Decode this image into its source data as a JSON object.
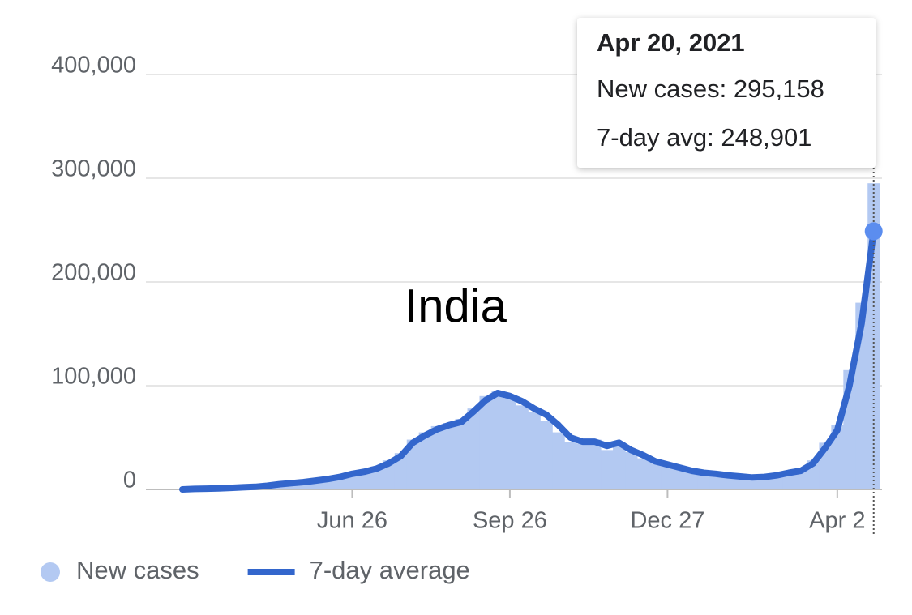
{
  "chart_data": {
    "type": "combo",
    "annotation": "India",
    "categories": [
      null,
      null,
      null,
      null,
      null,
      null,
      null,
      null,
      null,
      null,
      null,
      null,
      null,
      null,
      "Jun 26",
      null,
      null,
      null,
      null,
      null,
      null,
      null,
      null,
      null,
      null,
      null,
      null,
      "Sep 26",
      null,
      null,
      null,
      null,
      null,
      null,
      null,
      null,
      null,
      null,
      null,
      null,
      "Dec 27",
      null,
      null,
      null,
      null,
      null,
      null,
      null,
      null,
      null,
      null,
      null,
      null,
      null,
      "Apr 2",
      null,
      null,
      null
    ],
    "series": [
      {
        "name": "New cases",
        "type": "bar",
        "color": "#b3c9f2",
        "values": [
          100,
          700,
          900,
          1200,
          1800,
          2300,
          3000,
          4000,
          5500,
          6500,
          7800,
          9200,
          11000,
          13000,
          16000,
          18500,
          22000,
          28000,
          35000,
          48000,
          55000,
          61000,
          64000,
          68000,
          78000,
          90000,
          95000,
          88000,
          81000,
          75000,
          66000,
          55000,
          46000,
          44000,
          48000,
          38000,
          46000,
          36000,
          30000,
          25000,
          22000,
          20000,
          18000,
          15000,
          14000,
          12500,
          11500,
          11000,
          13000,
          15000,
          18000,
          20000,
          28000,
          45000,
          62000,
          115000,
          180000,
          295158
        ]
      },
      {
        "name": "7-day average",
        "type": "line",
        "color": "#3366cc",
        "values": [
          0,
          500,
          700,
          1000,
          1500,
          2000,
          2500,
          3500,
          5000,
          6000,
          7000,
          8500,
          10000,
          12000,
          15000,
          17000,
          20000,
          25000,
          32000,
          45000,
          52000,
          58000,
          62000,
          65000,
          75000,
          86000,
          93000,
          90000,
          85000,
          78000,
          72000,
          62000,
          50000,
          46000,
          46000,
          42000,
          45000,
          38000,
          33000,
          27000,
          24000,
          21000,
          18000,
          16000,
          15000,
          13500,
          12500,
          11500,
          12000,
          13500,
          16000,
          18000,
          25000,
          40000,
          57000,
          100000,
          160000,
          248901
        ]
      }
    ],
    "ylim": [
      0,
      400000
    ],
    "yticks": [
      {
        "value": 0,
        "label": "0"
      },
      {
        "value": 100000,
        "label": "100,000"
      },
      {
        "value": 200000,
        "label": "200,000"
      },
      {
        "value": 300000,
        "label": "300,000"
      },
      {
        "value": 400000,
        "label": "400,000"
      }
    ],
    "grid": true,
    "tooltip": {
      "title": "Apr 20, 2021",
      "lines": [
        "New cases: 295,158",
        "7-day avg: 248,901"
      ]
    }
  }
}
